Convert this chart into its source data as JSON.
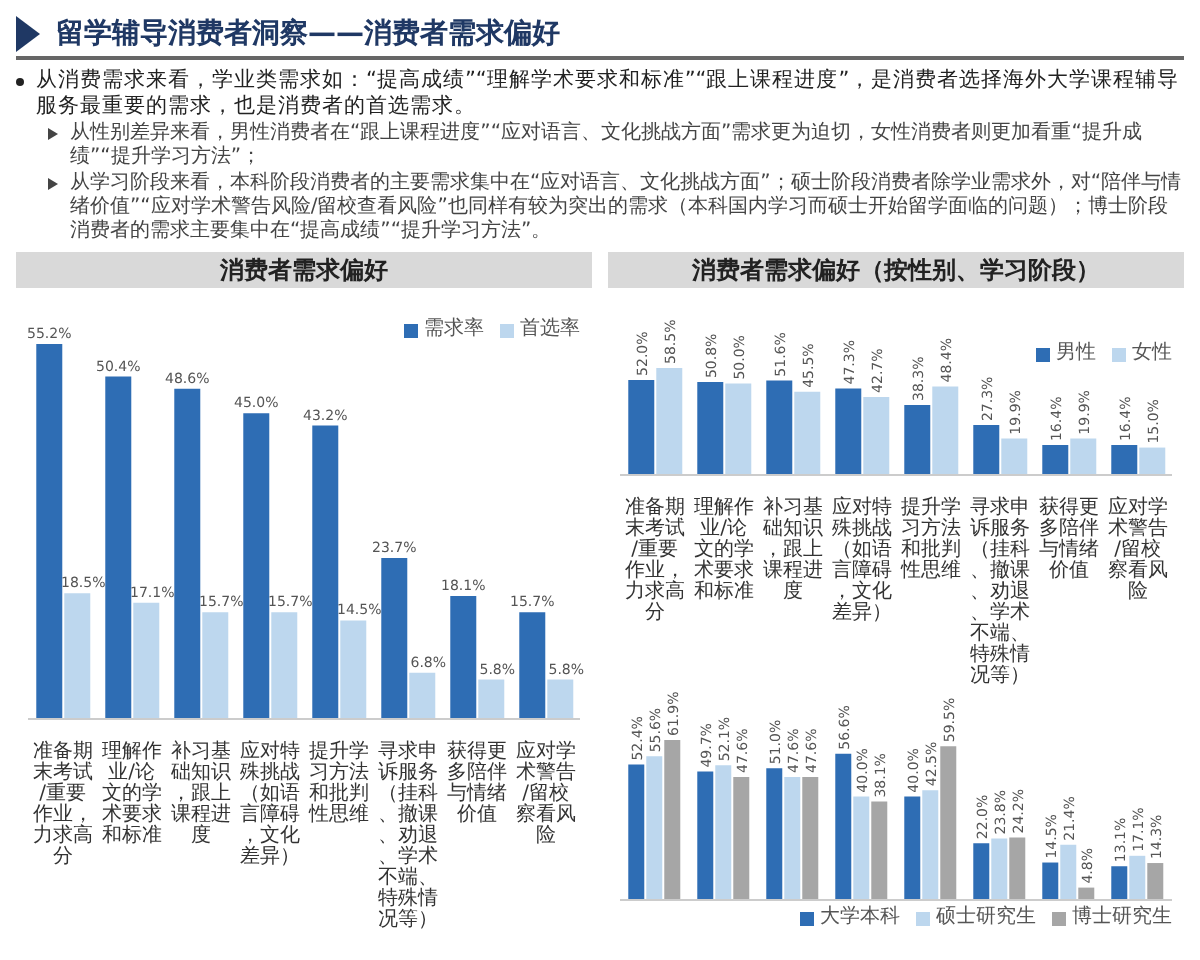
{
  "chart_data": [
    {
      "type": "other",
      "title": "留学辅导消费者洞察——消费者需求偏好",
      "annotations": [
        "从消费需求来看，学业类需求如：“提高成绩”“理解学术要求和标准”“跟上课程进度”，是消费者选择海外大学课程辅导服务最重要的需求，也是消费者的首选需求。",
        "从性别差异来看，男性消费者在“跟上课程进度”“应对语言、文化挑战方面”需求更为迫切，女性消费者则更加看重“提升成绩”“提升学习方法”；",
        "从学习阶段来看，本科阶段消费者的主要需求集中在“应对语言、文化挑战方面”；硕士阶段消费者除学业需求外，对“陪伴与情绪价值”“应对学术警告风险/留校查看风险”也同样有较为突出的需求（本科国内学习而硕士开始留学面临的问题）；博士阶段消费者的需求主要集中在“提高成绩”“提升学习方法”。"
      ]
    },
    {
      "type": "bar",
      "title": "消费者需求偏好",
      "legend": "top right",
      "tick_labels": "x",
      "categories": [
        "准备期末考试/重要作业，力求高分",
        "理解作业/论文的学术要求和标准",
        "补习基础知识，跟上课程进度",
        "应对特殊挑战（如语言障碍，文化差异）",
        "提升学习方法和批判性思维",
        "寻求申诉服务（挂科、撤课、劝退、学术不端、特殊情况等）",
        "获得更多陪伴与情绪价值",
        "应对学术警告/留校察看风险"
      ],
      "series": [
        {
          "name": "需求率",
          "color": "#2e6db4",
          "values": [
            55.2,
            50.4,
            48.6,
            45.0,
            43.2,
            23.7,
            18.1,
            15.7
          ],
          "value_labels": [
            "55.2%",
            "50.4%",
            "48.6%",
            "45.0%",
            "43.2%",
            "23.7%",
            "18.1%",
            "15.7%"
          ]
        },
        {
          "name": "首选率",
          "color": "#bdd7ee",
          "values": [
            18.5,
            17.1,
            15.7,
            15.7,
            14.5,
            6.8,
            5.8,
            5.8
          ],
          "value_labels": [
            "18.5%",
            "17.1%",
            "15.7%",
            "15.7%",
            "14.5%",
            "6.8%",
            "5.8%",
            "5.8%"
          ]
        }
      ]
    },
    {
      "type": "bar",
      "title": "消费者需求偏好（按性别、学习阶段）",
      "legend": "top right",
      "tick_labels": "x",
      "categories": [
        "准备期末考试/重要作业，力求高分",
        "理解作业/论文的学术要求和标准",
        "补习基础知识，跟上课程进度",
        "应对特殊挑战（如语言障碍，文化差异）",
        "提升学习方法和批判性思维",
        "寻求申诉服务（挂科、撤课、劝退、学术不端、特殊情况等）",
        "获得更多陪伴与情绪价值",
        "应对学术警告/留校察看风险"
      ],
      "series": [
        {
          "name": "男性",
          "color": "#2e6db4",
          "values": [
            52.0,
            50.8,
            51.6,
            47.3,
            38.3,
            27.3,
            16.4,
            16.4
          ],
          "value_labels": [
            "52.0%",
            "50.8%",
            "51.6%",
            "47.3%",
            "38.3%",
            "27.3%",
            "16.4%",
            "16.4%"
          ]
        },
        {
          "name": "女性",
          "color": "#bdd7ee",
          "values": [
            58.5,
            50.0,
            45.5,
            42.7,
            48.4,
            19.9,
            19.9,
            15.0
          ],
          "value_labels": [
            "58.5%",
            "50.0%",
            "45.5%",
            "42.7%",
            "48.4%",
            "19.9%",
            "19.9%",
            "15.0%"
          ]
        }
      ]
    },
    {
      "type": "bar",
      "legend": "bottom right",
      "tick_labels": false,
      "categories": [
        "准备期末考试/重要作业，力求高分",
        "理解作业/论文的学术要求和标准",
        "补习基础知识，跟上课程进度",
        "应对特殊挑战（如语言障碍，文化差异）",
        "提升学习方法和批判性思维",
        "寻求申诉服务（挂科、撤课、劝退、学术不端、特殊情况等）",
        "获得更多陪伴与情绪价值",
        "应对学术警告/留校察看风险"
      ],
      "series": [
        {
          "name": "大学本科",
          "color": "#2e6db4",
          "values": [
            52.4,
            49.7,
            51.0,
            56.6,
            40.0,
            22.0,
            14.5,
            13.1
          ],
          "value_labels": [
            "52.4%",
            "49.7%",
            "51.0%",
            "56.6%",
            "40.0%",
            "22.0%",
            "14.5%",
            "13.1%"
          ]
        },
        {
          "name": "硕士研究生",
          "color": "#bdd7ee",
          "values": [
            55.6,
            52.1,
            47.6,
            40.0,
            42.5,
            23.8,
            21.4,
            17.1
          ],
          "value_labels": [
            "55.6%",
            "52.1%",
            "47.6%",
            "40.0%",
            "42.5%",
            "23.8%",
            "21.4%",
            "17.1%"
          ]
        },
        {
          "name": "博士研究生",
          "color": "#a6a6a6",
          "values": [
            61.9,
            47.6,
            47.6,
            38.1,
            59.5,
            24.2,
            4.8,
            14.3
          ],
          "value_labels": [
            "61.9%",
            "47.6%",
            "47.6%",
            "38.1%",
            "59.5%",
            "24.2%",
            "4.8%",
            "14.3%"
          ]
        }
      ]
    }
  ]
}
